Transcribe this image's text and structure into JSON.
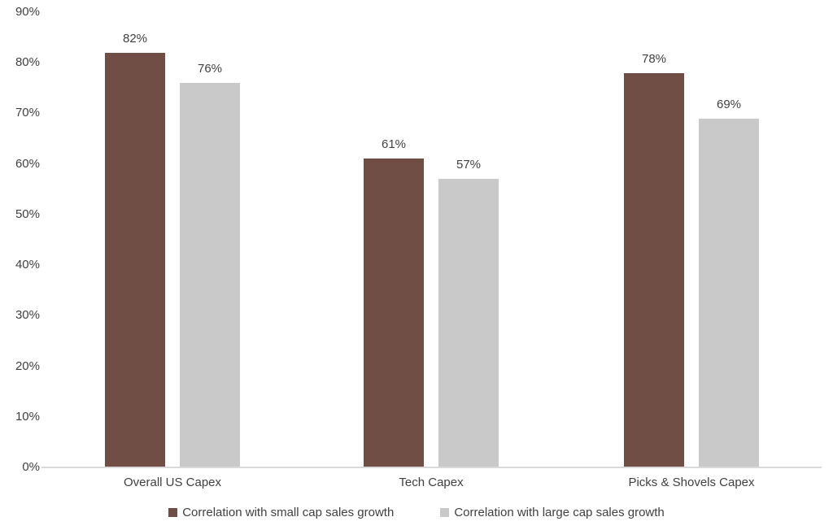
{
  "chart_data": {
    "type": "bar",
    "title": "",
    "categories": [
      "Overall US Capex",
      "Tech Capex",
      "Picks & Shovels Capex"
    ],
    "series": [
      {
        "name": "Correlation with small cap sales growth",
        "color": "#704D45",
        "values": [
          82,
          61,
          78
        ]
      },
      {
        "name": "Correlation with large cap sales growth",
        "color": "#C9C9C9",
        "values": [
          76,
          57,
          69
        ]
      }
    ],
    "value_suffix": "%",
    "data_labels": true,
    "xlabel": "",
    "ylabel": "",
    "ylim": [
      0,
      90
    ],
    "ytick_step": 10,
    "ytick_labels": [
      "0%",
      "10%",
      "20%",
      "30%",
      "40%",
      "50%",
      "60%",
      "70%",
      "80%",
      "90%"
    ],
    "grid": false,
    "legend_position": "bottom"
  },
  "colors": {
    "background": "#FFFFFF",
    "text": "#404040",
    "axis_line": "#D9D9D9"
  }
}
